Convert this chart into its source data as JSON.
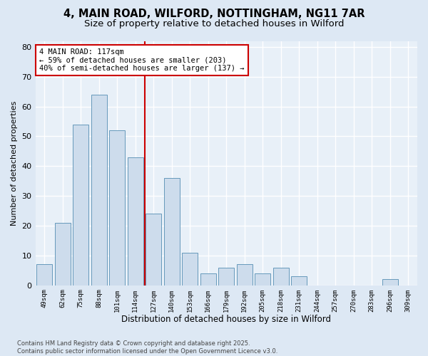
{
  "title_line1": "4, MAIN ROAD, WILFORD, NOTTINGHAM, NG11 7AR",
  "title_line2": "Size of property relative to detached houses in Wilford",
  "xlabel": "Distribution of detached houses by size in Wilford",
  "ylabel": "Number of detached properties",
  "categories": [
    "49sqm",
    "62sqm",
    "75sqm",
    "88sqm",
    "101sqm",
    "114sqm",
    "127sqm",
    "140sqm",
    "153sqm",
    "166sqm",
    "179sqm",
    "192sqm",
    "205sqm",
    "218sqm",
    "231sqm",
    "244sqm",
    "257sqm",
    "270sqm",
    "283sqm",
    "296sqm",
    "309sqm"
  ],
  "values": [
    7,
    21,
    54,
    64,
    52,
    43,
    24,
    36,
    11,
    4,
    6,
    7,
    4,
    6,
    3,
    0,
    0,
    0,
    0,
    2,
    0
  ],
  "bar_color": "#cddcec",
  "bar_edge_color": "#6699bb",
  "vline_x": 5.5,
  "vline_color": "#cc0000",
  "annotation_text": "4 MAIN ROAD: 117sqm\n← 59% of detached houses are smaller (203)\n40% of semi-detached houses are larger (137) →",
  "annotation_box_color": "#ffffff",
  "annotation_box_edge": "#cc0000",
  "ylim": [
    0,
    82
  ],
  "yticks": [
    0,
    10,
    20,
    30,
    40,
    50,
    60,
    70,
    80
  ],
  "background_color": "#dde8f4",
  "plot_bg_color": "#e8f0f8",
  "grid_color": "#ffffff",
  "footer_text": "Contains HM Land Registry data © Crown copyright and database right 2025.\nContains public sector information licensed under the Open Government Licence v3.0.",
  "title_fontsize": 10.5,
  "subtitle_fontsize": 9.5,
  "fig_bg_color": "#dde8f4"
}
